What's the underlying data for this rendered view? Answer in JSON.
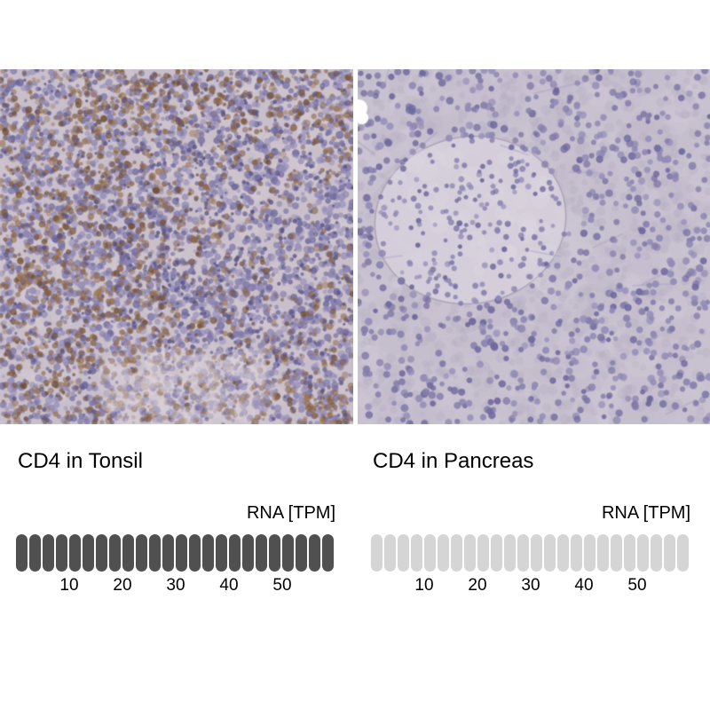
{
  "figure": {
    "background": "#ffffff",
    "description": "Immunohistochemistry comparison of CD4 protein expression in tonsil versus pancreas with RNA expression scale bars"
  },
  "panels": [
    {
      "id": "tonsil",
      "title": "CD4 in Tonsil",
      "rna_label": "RNA [TPM]",
      "ticks": [
        "10",
        "20",
        "30",
        "40",
        "50"
      ],
      "bar": {
        "segments_total": 24,
        "segments_filled": 24,
        "tpm_per_segment": 2.5,
        "filled_color": "#505050",
        "empty_color": "#d5d5d5"
      },
      "image": {
        "description": "IHC microscopy of tonsil: strong brown membranous CD4 staining at left, dense purple hematoxylin-stained lymphocyte follicle at right",
        "background": "#c9bfca",
        "nuclei_colors": [
          "#7a74a6",
          "#8a83b1",
          "#6b669b",
          "#948dba"
        ],
        "accent_nuclei_color": "#5a5588",
        "stain_colors": [
          "#7b5738",
          "#8a6442",
          "#9a7450",
          "#6e4c30"
        ],
        "wash_color": "#e3d8da"
      }
    },
    {
      "id": "pancreas",
      "title": "CD4 in Pancreas",
      "rna_label": "RNA [TPM]",
      "ticks": [
        "10",
        "20",
        "30",
        "40",
        "50"
      ],
      "bar": {
        "segments_total": 24,
        "segments_filled": 0,
        "tpm_per_segment": 2.5,
        "filled_color": "#505050",
        "empty_color": "#d5d5d5"
      },
      "image": {
        "description": "IHC microscopy of pancreas: negative CD4 staining, pale lavender exocrine tissue with scattered purple nuclei and a lighter islet of Langerhans, small white artifact at left edge",
        "background": "#c8c1cf",
        "nuclei_colors": [
          "#837caa",
          "#918ab6",
          "#6f689d"
        ],
        "mottle_colors": [
          "#bfb7c8",
          "#d2cbd9",
          "#c4bccd"
        ],
        "islet_fill": "#d6cfdb",
        "islet_stroke": "#aaa2b6",
        "vessel_color": "#9a94bb",
        "artifact_color": "#ffffff"
      }
    }
  ],
  "chart_data": [
    {
      "type": "bar",
      "title": "CD4 in Tonsil",
      "xlabel": "RNA [TPM]",
      "x_ticks": [
        10,
        20,
        30,
        40,
        50
      ],
      "xlim": [
        0,
        60
      ],
      "segments": 24,
      "tpm_per_segment": 2.5,
      "filled_segments": 24,
      "value_tpm": 60,
      "bar_color": "#505050",
      "note": "segmented scale bar fully filled dark grey, indicating high RNA expression (~60 TPM or above)"
    },
    {
      "type": "bar",
      "title": "CD4 in Pancreas",
      "xlabel": "RNA [TPM]",
      "x_ticks": [
        10,
        20,
        30,
        40,
        50
      ],
      "xlim": [
        0,
        60
      ],
      "segments": 24,
      "tpm_per_segment": 2.5,
      "filled_segments": 0,
      "value_tpm": 0,
      "bar_color": "#d5d5d5",
      "note": "segmented scale bar entirely light grey, indicating near-zero RNA expression"
    }
  ]
}
